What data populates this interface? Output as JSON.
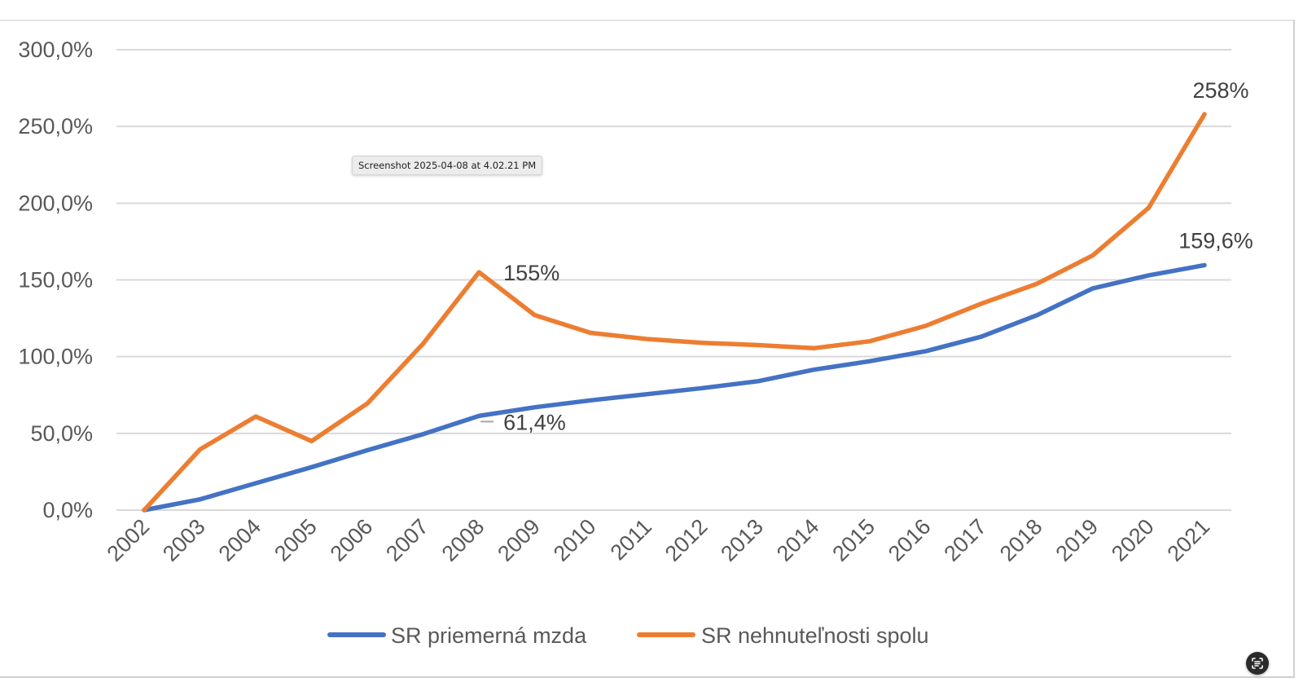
{
  "overlay": {
    "tooltip_text": "Screenshot 2025-04-08 at 4.02.21 PM",
    "live_text_icon": "live-text-scan-icon"
  },
  "colors": {
    "blue": "#4472C4",
    "orange": "#ED7D31",
    "grid": "#d9d9d9",
    "axis_text": "#595959"
  },
  "chart_data": {
    "type": "line",
    "title": "",
    "xlabel": "",
    "ylabel": "",
    "categories": [
      "2002",
      "2003",
      "2004",
      "2005",
      "2006",
      "2007",
      "2008",
      "2009",
      "2010",
      "2011",
      "2012",
      "2013",
      "2014",
      "2015",
      "2016",
      "2017",
      "2018",
      "2019",
      "2020",
      "2021"
    ],
    "ylim": [
      0,
      300
    ],
    "yticks": [
      0,
      50,
      100,
      150,
      200,
      250,
      300
    ],
    "ytick_labels": [
      "0,0%",
      "50,0%",
      "100,0%",
      "150,0%",
      "200,0%",
      "250,0%",
      "300,0%"
    ],
    "grid": true,
    "legend_position": "bottom",
    "series": [
      {
        "name": "SR priemerná mzda",
        "color": "#4472C4",
        "values": [
          0,
          7,
          17.5,
          28,
          39,
          49.5,
          61.4,
          67,
          71.5,
          75.5,
          79.5,
          84,
          91.5,
          97,
          103.5,
          113,
          127,
          144.5,
          153,
          159.6
        ]
      },
      {
        "name": "SR nehnuteľnosti spolu",
        "color": "#ED7D31",
        "values": [
          0,
          39.5,
          61,
          45,
          69.5,
          108.5,
          155,
          127,
          115.5,
          111.5,
          109,
          107.5,
          105.5,
          110,
          120,
          134.5,
          147.5,
          166,
          197,
          258
        ]
      }
    ],
    "annotations": [
      {
        "series": 1,
        "index": 6,
        "text": "155%"
      },
      {
        "series": 0,
        "index": 6,
        "text": "61,4%"
      },
      {
        "series": 1,
        "index": 19,
        "text": "258%"
      },
      {
        "series": 0,
        "index": 19,
        "text": "159,6%"
      }
    ]
  }
}
